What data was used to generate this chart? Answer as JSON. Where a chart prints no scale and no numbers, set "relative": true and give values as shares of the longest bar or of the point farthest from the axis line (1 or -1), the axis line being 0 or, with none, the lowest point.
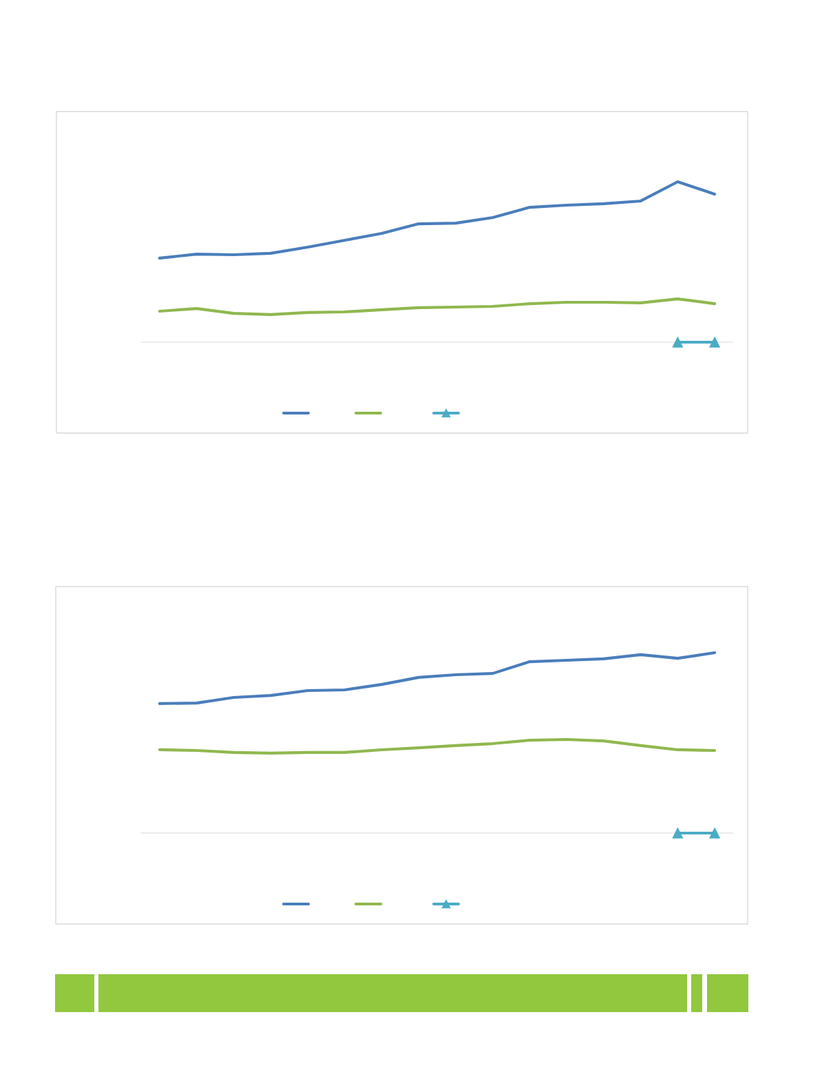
{
  "chart_data": [
    {
      "type": "line",
      "relative": true,
      "grid": false,
      "categories": [
        null,
        null,
        null,
        null,
        null,
        null,
        null,
        null,
        null,
        null,
        null,
        null,
        null,
        null,
        null,
        null
      ],
      "series": [
        {
          "color": "#4a7ebb",
          "marker": "none",
          "values": [
            0.524,
            0.549,
            0.545,
            0.554,
            0.592,
            0.635,
            0.678,
            0.738,
            0.742,
            0.777,
            0.841,
            0.854,
            0.863,
            0.88,
            1,
            0.923
          ]
        },
        {
          "color": "#8fb84e",
          "marker": "none",
          "values": [
            0.193,
            0.21,
            0.18,
            0.172,
            0.185,
            0.189,
            0.202,
            0.215,
            0.219,
            0.223,
            0.24,
            0.249,
            0.249,
            0.245,
            0.27,
            0.24
          ]
        },
        {
          "color": "#4bacc6",
          "marker": "triangle",
          "values": [
            null,
            null,
            null,
            null,
            null,
            null,
            null,
            null,
            null,
            null,
            null,
            null,
            null,
            null,
            0,
            0
          ]
        }
      ]
    },
    {
      "type": "line",
      "relative": true,
      "grid": false,
      "categories": [
        null,
        null,
        null,
        null,
        null,
        null,
        null,
        null,
        null,
        null,
        null,
        null,
        null,
        null,
        null,
        null
      ],
      "series": [
        {
          "color": "#4a7ebb",
          "marker": "none",
          "values": [
            0.718,
            0.721,
            0.752,
            0.763,
            0.79,
            0.794,
            0.824,
            0.863,
            0.878,
            0.885,
            0.95,
            0.958,
            0.966,
            0.989,
            0.969,
            1
          ]
        },
        {
          "color": "#8fb84e",
          "marker": "none",
          "values": [
            0.462,
            0.458,
            0.447,
            0.443,
            0.447,
            0.447,
            0.462,
            0.473,
            0.485,
            0.496,
            0.515,
            0.519,
            0.511,
            0.485,
            0.462,
            0.458
          ]
        },
        {
          "color": "#4bacc6",
          "marker": "triangle",
          "values": [
            null,
            null,
            null,
            null,
            null,
            null,
            null,
            null,
            null,
            null,
            null,
            null,
            null,
            null,
            0,
            0
          ]
        }
      ]
    }
  ]
}
